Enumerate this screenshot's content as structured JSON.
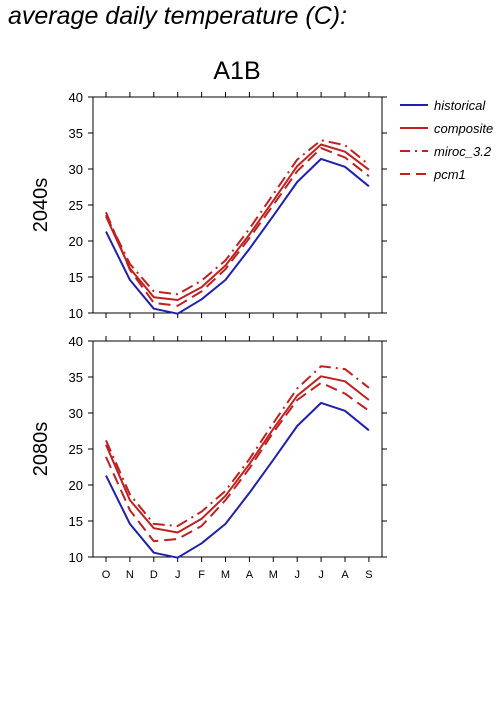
{
  "page": {
    "title": "average daily temperature (C):"
  },
  "chart_data": {
    "type": "line",
    "title": "A1B",
    "categories": [
      "O",
      "N",
      "D",
      "J",
      "F",
      "M",
      "A",
      "M",
      "J",
      "J",
      "A",
      "S"
    ],
    "ylim": [
      10,
      40
    ],
    "yticks": [
      10,
      15,
      20,
      25,
      30,
      35,
      40
    ],
    "legend_position": "right",
    "legend": [
      {
        "name": "historical",
        "color": "#2020b0",
        "style": "solid"
      },
      {
        "name": "composite",
        "color": "#c02020",
        "style": "solid"
      },
      {
        "name": "miroc_3.2",
        "color": "#c02020",
        "style": "dashdot"
      },
      {
        "name": "pcm1",
        "color": "#c02020",
        "style": "dashed"
      }
    ],
    "panels": [
      {
        "label": "2040s",
        "series": [
          {
            "name": "historical",
            "values": [
              21.3,
              14.6,
              10.6,
              9.9,
              11.9,
              14.6,
              18.9,
              23.5,
              28.2,
              31.4,
              30.3,
              27.6
            ]
          },
          {
            "name": "composite",
            "values": [
              23.4,
              16.2,
              12.2,
              11.8,
              13.6,
              16.6,
              20.9,
              25.6,
              30.4,
              33.4,
              32.4,
              29.9
            ]
          },
          {
            "name": "miroc_3.2",
            "values": [
              23.6,
              16.8,
              13.0,
              12.6,
              14.5,
              17.3,
              21.7,
              26.5,
              31.3,
              34.0,
              33.3,
              30.6
            ]
          },
          {
            "name": "pcm1",
            "values": [
              24.0,
              16.0,
              11.4,
              11.0,
              13.0,
              16.1,
              20.4,
              25.0,
              29.7,
              32.9,
              31.6,
              29.0
            ]
          }
        ]
      },
      {
        "label": "2080s",
        "series": [
          {
            "name": "historical",
            "values": [
              21.3,
              14.6,
              10.6,
              9.9,
              11.9,
              14.6,
              18.9,
              23.5,
              28.2,
              31.4,
              30.3,
              27.6
            ]
          },
          {
            "name": "composite",
            "values": [
              25.6,
              17.9,
              14.0,
              13.4,
              15.3,
              18.5,
              22.9,
              27.8,
              32.4,
              35.1,
              34.4,
              31.8
            ]
          },
          {
            "name": "miroc_3.2",
            "values": [
              26.2,
              18.7,
              14.6,
              14.3,
              16.3,
              19.2,
              23.6,
              28.6,
              33.4,
              36.5,
              36.1,
              33.5
            ]
          },
          {
            "name": "pcm1",
            "values": [
              23.9,
              16.5,
              12.2,
              12.5,
              14.3,
              17.9,
              22.3,
              27.3,
              31.8,
              34.2,
              32.7,
              30.3
            ]
          }
        ]
      }
    ]
  }
}
